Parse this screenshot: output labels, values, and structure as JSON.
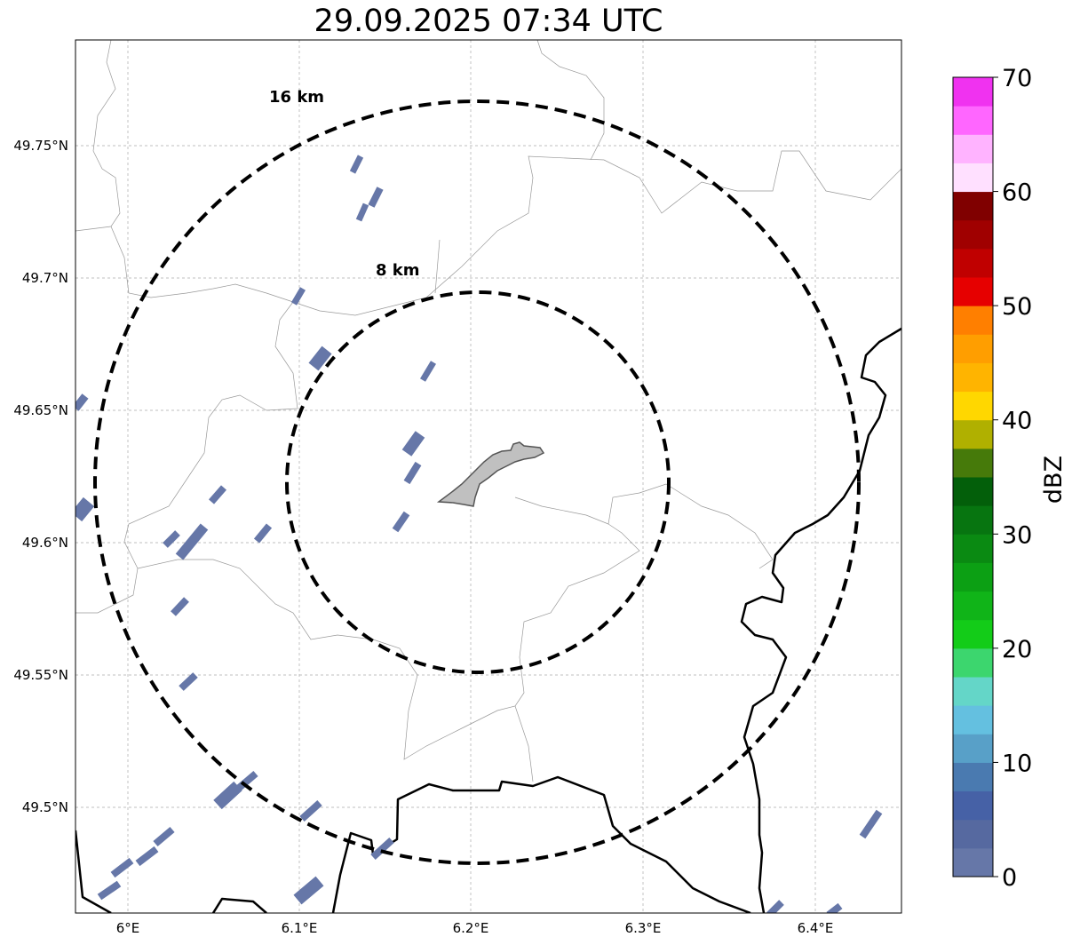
{
  "title": "29.09.2025 07:34 UTC",
  "rings": [
    {
      "label": "16 km"
    },
    {
      "label": "8 km"
    }
  ],
  "x_ticks": [
    "6°E",
    "6.1°E",
    "6.2°E",
    "6.3°E",
    "6.4°E"
  ],
  "y_ticks": [
    "49.75°N",
    "49.7°N",
    "49.65°N",
    "49.6°N",
    "49.55°N",
    "49.5°N"
  ],
  "colorbar": {
    "label": "dBZ",
    "ticks": [
      "0",
      "10",
      "20",
      "30",
      "40",
      "50",
      "60",
      "70"
    ],
    "min": 0,
    "max": 70,
    "step": 2.5,
    "colors": [
      "#6677a8",
      "#5669a0",
      "#4661a6",
      "#4a7ab0",
      "#58a0c8",
      "#64c0e0",
      "#64d6c8",
      "#3cd66e",
      "#13cc18",
      "#10b418",
      "#0ca014",
      "#0a8a12",
      "#077510",
      "#035f0a",
      "#467a0a",
      "#b0b000",
      "#ffd700",
      "#ffb400",
      "#ff9e00",
      "#ff7f00",
      "#e60000",
      "#c00000",
      "#a00000",
      "#800000",
      "#ffe0ff",
      "#ffb3ff",
      "#ff66ff",
      "#f032f0"
    ]
  },
  "echo_color": "#6677a8",
  "city_color": "#c0c0c0"
}
